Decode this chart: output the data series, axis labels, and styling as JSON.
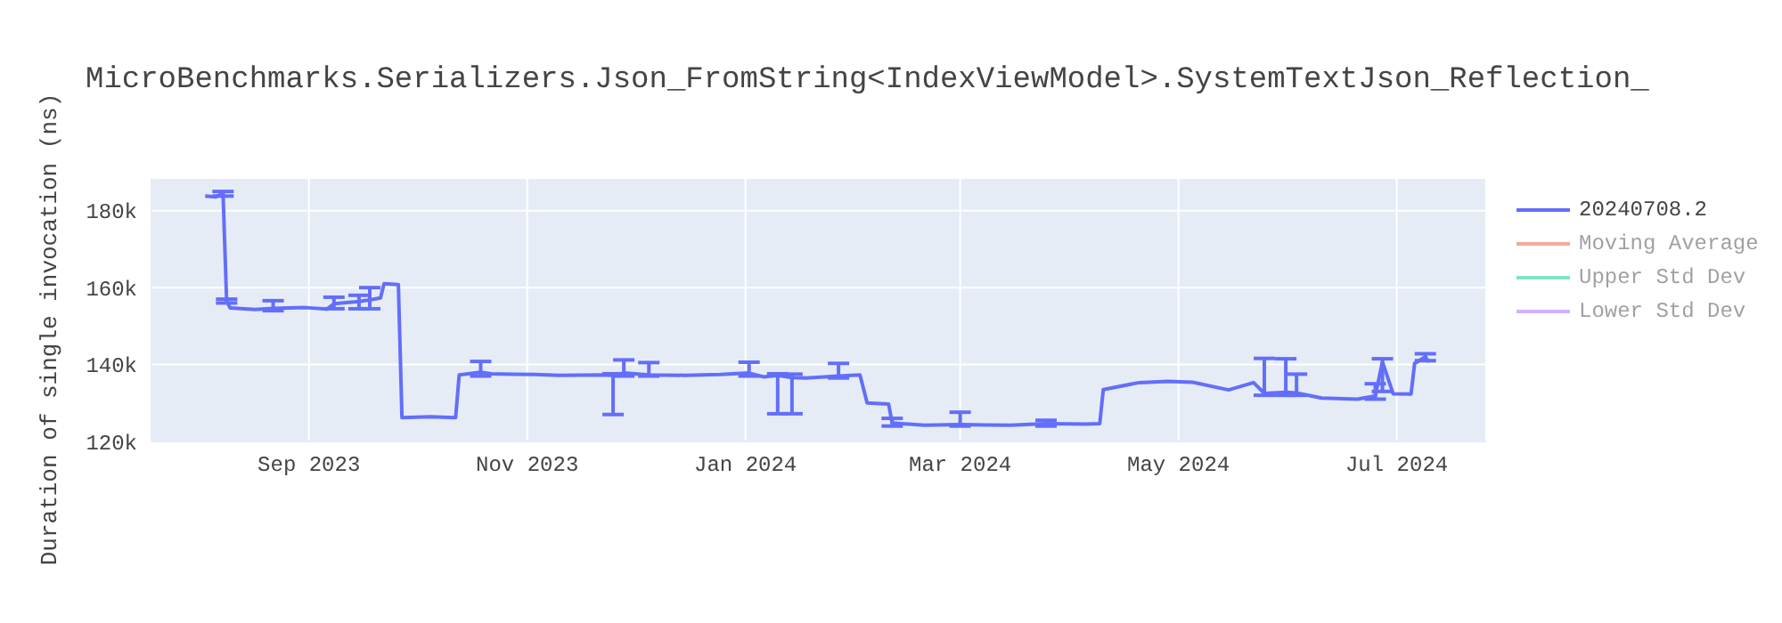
{
  "chart_data": {
    "type": "line",
    "title": "MicroBenchmarks.Serializers.Json_FromString<IndexViewModel>.SystemTextJson_Reflection_",
    "ylabel": "Duration of single invocation (ns)",
    "x": [
      "2023-08-03",
      "2023-08-06",
      "2023-08-08",
      "2023-08-09",
      "2023-08-10",
      "2023-08-17",
      "2023-08-22",
      "2023-08-31",
      "2023-09-06",
      "2023-09-08",
      "2023-09-15",
      "2023-09-18",
      "2023-09-21",
      "2023-09-22",
      "2023-09-26",
      "2023-09-27",
      "2023-10-05",
      "2023-10-12",
      "2023-10-13",
      "2023-10-19",
      "2023-10-22",
      "2023-10-28",
      "2023-11-03",
      "2023-11-10",
      "2023-11-22",
      "2023-11-25",
      "2023-11-28",
      "2023-12-05",
      "2023-12-15",
      "2023-12-25",
      "2024-01-02",
      "2024-01-06",
      "2024-01-10",
      "2024-01-14",
      "2024-01-18",
      "2024-01-27",
      "2024-02-02",
      "2024-02-04",
      "2024-02-10",
      "2024-02-11",
      "2024-02-20",
      "2024-03-01",
      "2024-03-08",
      "2024-03-15",
      "2024-03-25",
      "2024-04-05",
      "2024-04-09",
      "2024-04-10",
      "2024-04-20",
      "2024-04-28",
      "2024-05-05",
      "2024-05-15",
      "2024-05-22",
      "2024-05-25",
      "2024-05-31",
      "2024-06-03",
      "2024-06-10",
      "2024-06-20",
      "2024-06-25",
      "2024-06-27",
      "2024-06-30",
      "2024-07-05",
      "2024-07-06",
      "2024-07-09",
      "2024-07-10"
    ],
    "series": [
      {
        "name": "20240708.2",
        "color": "#636efa",
        "values": [
          183800,
          183600,
          184500,
          156500,
          154700,
          154300,
          154600,
          154800,
          154400,
          155800,
          156400,
          156800,
          157300,
          161000,
          160800,
          126200,
          126400,
          126200,
          137300,
          138000,
          137600,
          137500,
          137400,
          137200,
          137300,
          137200,
          137800,
          137300,
          137200,
          137400,
          137800,
          136800,
          137200,
          136600,
          136500,
          137000,
          137300,
          130000,
          129700,
          124800,
          124200,
          124400,
          124300,
          124200,
          124600,
          124500,
          124600,
          133500,
          135300,
          135600,
          135400,
          133400,
          135300,
          132500,
          132800,
          132600,
          131300,
          131000,
          131800,
          140700,
          132400,
          132300,
          140300,
          142000,
          140600
        ],
        "errors": [
          null,
          null,
          [
            183800,
            185000
          ],
          [
            156000,
            157000
          ],
          null,
          null,
          [
            154000,
            156600
          ],
          null,
          null,
          [
            154500,
            157500
          ],
          [
            154500,
            158000
          ],
          [
            154500,
            160000
          ],
          null,
          null,
          null,
          null,
          null,
          null,
          null,
          [
            137000,
            140800
          ],
          null,
          null,
          null,
          null,
          null,
          [
            127000,
            137600
          ],
          [
            137000,
            141200
          ],
          [
            137000,
            140500
          ],
          null,
          null,
          [
            137000,
            140600
          ],
          null,
          [
            127200,
            137600
          ],
          [
            127200,
            137500
          ],
          null,
          [
            136500,
            140300
          ],
          null,
          null,
          null,
          [
            124000,
            126000
          ],
          null,
          [
            124000,
            127600
          ],
          null,
          null,
          [
            124000,
            125500
          ],
          null,
          null,
          null,
          null,
          null,
          null,
          null,
          null,
          [
            132000,
            141600
          ],
          [
            132000,
            141500
          ],
          [
            132000,
            137500
          ],
          null,
          null,
          [
            131000,
            135000
          ],
          [
            133000,
            141500
          ],
          null,
          null,
          null,
          [
            141000,
            142800
          ],
          null
        ]
      },
      {
        "name": "Moving Average",
        "color": "#ef553b",
        "values": [
          null,
          null,
          null,
          null,
          null,
          null,
          null,
          null,
          null,
          null,
          null,
          null,
          null,
          null,
          null,
          null,
          null,
          null,
          null,
          null,
          null,
          null,
          null,
          null,
          null,
          null,
          null,
          null,
          null,
          null,
          null,
          null,
          null,
          null,
          null,
          null,
          null,
          null,
          null,
          null,
          null,
          null,
          null,
          null,
          null,
          null,
          null,
          null,
          null,
          null,
          null,
          null,
          null,
          null,
          null,
          null,
          null,
          null,
          null,
          null,
          null,
          null,
          null,
          null,
          null
        ]
      },
      {
        "name": "Upper Std Dev",
        "color": "#00cc96",
        "values": [
          null,
          null,
          null,
          null,
          null,
          null,
          null,
          null,
          null,
          null,
          null,
          null,
          null,
          null,
          null,
          null,
          null,
          null,
          null,
          null,
          null,
          null,
          null,
          null,
          null,
          null,
          null,
          null,
          null,
          null,
          null,
          null,
          null,
          null,
          null,
          null,
          null,
          null,
          null,
          null,
          null,
          null,
          null,
          null,
          null,
          null,
          null,
          null,
          null,
          null,
          null,
          null,
          null,
          null,
          null,
          null,
          null,
          null,
          null,
          null,
          null,
          null,
          null,
          null,
          null
        ]
      },
      {
        "name": "Lower Std Dev",
        "color": "#ab63fa",
        "values": [
          null,
          null,
          null,
          null,
          null,
          null,
          null,
          null,
          null,
          null,
          null,
          null,
          null,
          null,
          null,
          null,
          null,
          null,
          null,
          null,
          null,
          null,
          null,
          null,
          null,
          null,
          null,
          null,
          null,
          null,
          null,
          null,
          null,
          null,
          null,
          null,
          null,
          null,
          null,
          null,
          null,
          null,
          null,
          null,
          null,
          null,
          null,
          null,
          null,
          null,
          null,
          null,
          null,
          null,
          null,
          null,
          null,
          null,
          null,
          null,
          null,
          null,
          null,
          null,
          null
        ]
      }
    ],
    "xlim": [
      "2023-07-19",
      "2024-07-26"
    ],
    "xticks": [
      {
        "value": "2023-09-01",
        "label": "Sep 2023"
      },
      {
        "value": "2023-11-01",
        "label": "Nov 2023"
      },
      {
        "value": "2024-01-01",
        "label": "Jan 2024"
      },
      {
        "value": "2024-03-01",
        "label": "Mar 2024"
      },
      {
        "value": "2024-05-01",
        "label": "May 2024"
      },
      {
        "value": "2024-07-01",
        "label": "Jul 2024"
      }
    ],
    "ylim": [
      120000,
      188500
    ],
    "yticks": [
      {
        "value": 120000,
        "label": "120k"
      },
      {
        "value": 140000,
        "label": "140k"
      },
      {
        "value": 160000,
        "label": "160k"
      },
      {
        "value": 180000,
        "label": "180k"
      }
    ],
    "grid": true,
    "legend": "top right",
    "marker": "none",
    "line_style": "solid"
  }
}
